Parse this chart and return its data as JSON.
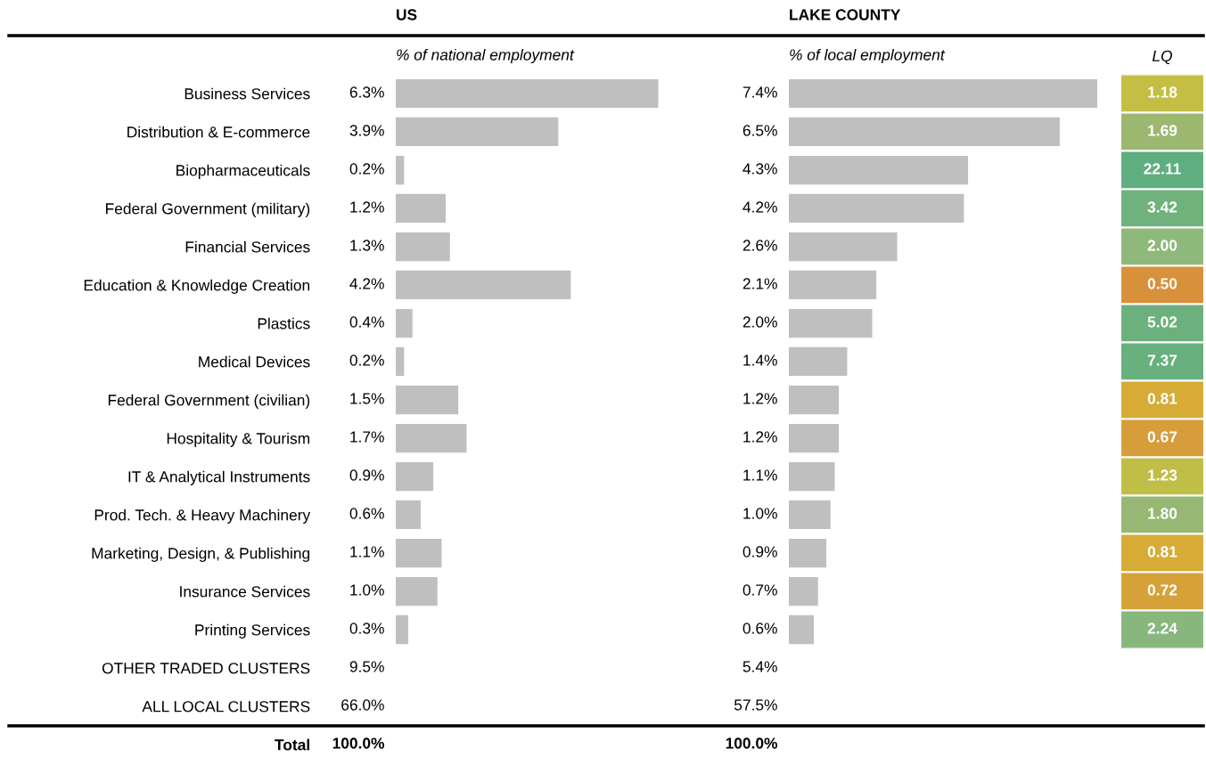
{
  "chart_data": [
    {
      "type": "bar",
      "orientation": "horizontal",
      "title": "US",
      "subtitle": "% of national employment",
      "tick_labels": "y",
      "color": "#bfbfbf",
      "categories": [
        "Business Services",
        "Distribution & E-commerce",
        "Biopharmaceuticals",
        "Federal Government (military)",
        "Financial Services",
        "Education & Knowledge Creation",
        "Plastics",
        "Medical Devices",
        "Federal Government (civilian)",
        "Hospitality & Tourism",
        "IT & Analytical Instruments",
        "Prod. Tech. & Heavy Machinery",
        "Marketing, Design, & Publishing",
        "Insurance Services",
        "Printing Services",
        "OTHER TRADED CLUSTERS",
        "ALL LOCAL CLUSTERS",
        "Total"
      ],
      "values": [
        6.3,
        3.9,
        0.2,
        1.2,
        1.3,
        4.2,
        0.4,
        0.2,
        1.5,
        1.7,
        0.9,
        0.6,
        1.1,
        1.0,
        0.3,
        null,
        null,
        null
      ],
      "value_labels": [
        "6.3%",
        "3.9%",
        "0.2%",
        "1.2%",
        "1.3%",
        "4.2%",
        "0.4%",
        "0.2%",
        "1.5%",
        "1.7%",
        "0.9%",
        "0.6%",
        "1.1%",
        "1.0%",
        "0.3%",
        "9.5%",
        "66.0%",
        "100.0%"
      ]
    },
    {
      "type": "bar",
      "orientation": "horizontal",
      "title": "LAKE COUNTY",
      "subtitle": "% of local employment",
      "tick_labels": false,
      "color": "#bfbfbf",
      "categories": [
        null,
        null,
        null,
        null,
        null,
        null,
        null,
        null,
        null,
        null,
        null,
        null,
        null,
        null,
        null,
        null,
        null,
        null
      ],
      "values": [
        7.4,
        6.5,
        4.3,
        4.2,
        2.6,
        2.1,
        2.0,
        1.4,
        1.2,
        1.2,
        1.1,
        1.0,
        0.9,
        0.7,
        0.6,
        null,
        null,
        null
      ],
      "value_labels": [
        "7.4%",
        "6.5%",
        "4.3%",
        "4.2%",
        "2.6%",
        "2.1%",
        "2.0%",
        "1.4%",
        "1.2%",
        "1.2%",
        "1.1%",
        "1.0%",
        "0.9%",
        "0.7%",
        "0.6%",
        "5.4%",
        "57.5%",
        "100.0%"
      ]
    },
    {
      "type": "heatmap",
      "categories": [
        "LQ"
      ],
      "tick_labels": "x",
      "y_categories": [
        null,
        null,
        null,
        null,
        null,
        null,
        null,
        null,
        null,
        null,
        null,
        null,
        null,
        null,
        null
      ],
      "cells": [
        [
          1.18
        ],
        [
          1.69
        ],
        [
          22.11
        ],
        [
          3.42
        ],
        [
          2.0
        ],
        [
          0.5
        ],
        [
          5.02
        ],
        [
          7.37
        ],
        [
          0.81
        ],
        [
          0.67
        ],
        [
          1.23
        ],
        [
          1.8
        ],
        [
          0.81
        ],
        [
          0.72
        ],
        [
          2.24
        ]
      ],
      "cell_labels": [
        [
          "1.18"
        ],
        [
          "1.69"
        ],
        [
          "22.11"
        ],
        [
          "3.42"
        ],
        [
          "2.00"
        ],
        [
          "0.50"
        ],
        [
          "5.02"
        ],
        [
          "7.37"
        ],
        [
          "0.81"
        ],
        [
          "0.67"
        ],
        [
          "1.23"
        ],
        [
          "1.80"
        ],
        [
          "0.81"
        ],
        [
          "0.72"
        ],
        [
          "2.24"
        ]
      ]
    }
  ]
}
